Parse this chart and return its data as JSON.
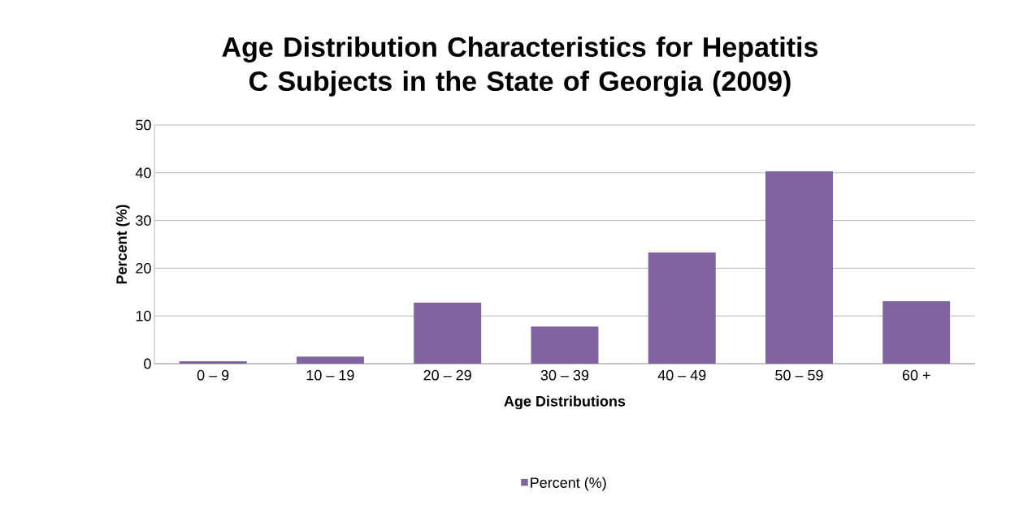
{
  "chart_data": {
    "type": "bar",
    "title": "Age Distribution Characteristics for Hepatitis C Subjects in the State of Georgia (2009)",
    "xlabel": "Age Distributions",
    "ylabel": "Percent (%)",
    "categories": [
      "0 – 9",
      "10 – 19",
      "20 – 29",
      "30 – 39",
      "40 – 49",
      "50 – 59",
      "60 +"
    ],
    "series": [
      {
        "name": "Percent (%)",
        "color": "#8064a2",
        "values": [
          0.5,
          1.5,
          12.8,
          7.8,
          23.3,
          40.3,
          13.1
        ]
      }
    ],
    "ylim": [
      0,
      50
    ],
    "yticks": [
      0,
      10,
      20,
      30,
      40,
      50
    ],
    "grid": "y",
    "legend": "bottom"
  }
}
